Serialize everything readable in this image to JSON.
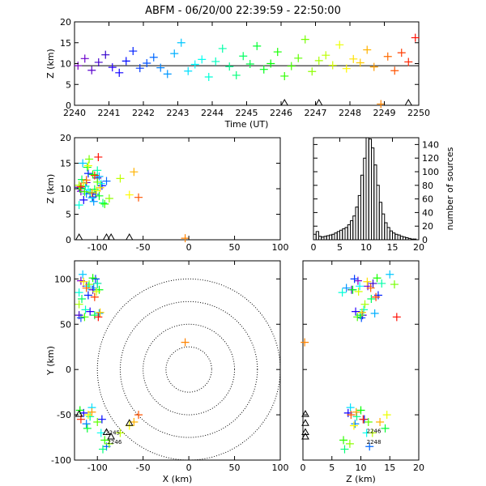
{
  "chart_data": {
    "type": "scatter",
    "title": "ABFM - 06/20/00 22:39:59 - 22:50:00",
    "panels": {
      "time_height": {
        "xlabel": "Time (UT)",
        "ylabel": "Z (km)",
        "xlim": [
          2240,
          2250
        ],
        "ylim": [
          0,
          20
        ],
        "xticks": [
          "2240",
          "2241",
          "2242",
          "2243",
          "2244",
          "2245",
          "2246",
          "2247",
          "2248",
          "2249",
          "2250"
        ],
        "yticks": [
          "0",
          "5",
          "10",
          "15",
          "20"
        ],
        "reference_line_z": 9.5
      },
      "x_height": {
        "xlabel": "",
        "ylabel": "Z (km)",
        "xlim": [
          -125,
          100
        ],
        "ylim": [
          0,
          20
        ],
        "xticks": [
          "-100",
          "-50",
          "0",
          "50",
          "100"
        ],
        "yticks": [
          "0",
          "5",
          "10",
          "15",
          "20"
        ]
      },
      "histogram": {
        "xlabel": "",
        "ylabel": "number of sources",
        "xlim": [
          0,
          20
        ],
        "ylim": [
          0,
          150
        ],
        "xticks": [
          "0",
          "5",
          "10",
          "15",
          "20"
        ],
        "yticks": [
          "0",
          "20",
          "40",
          "60",
          "80",
          "100",
          "120",
          "140"
        ],
        "bin_z": [
          0,
          0.5,
          1,
          1.5,
          2,
          2.5,
          3,
          3.5,
          4,
          4.5,
          5,
          5.5,
          6,
          6.5,
          7,
          7.5,
          8,
          8.5,
          9,
          9.5,
          10,
          10.5,
          11,
          11.5,
          12,
          12.5,
          13,
          13.5,
          14,
          14.5,
          15,
          15.5,
          16,
          16.5,
          17,
          17.5,
          18,
          18.5,
          19,
          19.5
        ],
        "counts": [
          8,
          12,
          5,
          4,
          5,
          6,
          7,
          8,
          10,
          12,
          14,
          16,
          18,
          22,
          28,
          35,
          48,
          65,
          95,
          120,
          150,
          148,
          135,
          110,
          80,
          55,
          38,
          25,
          18,
          13,
          10,
          8,
          7,
          5,
          4,
          3,
          2,
          1,
          1,
          0
        ]
      },
      "plan_view": {
        "xlabel": "X (km)",
        "ylabel": "Y (km)",
        "xlim": [
          -125,
          100
        ],
        "ylim": [
          -100,
          120
        ],
        "xticks": [
          "-100",
          "-50",
          "0",
          "50",
          "100"
        ],
        "yticks": [
          "-100",
          "-50",
          "0",
          "50",
          "100"
        ],
        "range_rings_km": [
          25,
          50,
          75,
          100
        ],
        "annotations": [
          "2245",
          "2246"
        ]
      },
      "z_y": {
        "xlabel": "Z (km)",
        "ylabel": "",
        "xlim": [
          0,
          20
        ],
        "ylim": [
          -100,
          120
        ],
        "xticks": [
          "0",
          "5",
          "10",
          "15",
          "20"
        ],
        "yticks": [
          "-100",
          "-50",
          "0",
          "50",
          "100"
        ],
        "annotations": [
          "2246",
          "2248"
        ]
      }
    },
    "station_markers": [
      {
        "x": -90,
        "y": -70
      },
      {
        "x": -85,
        "y": -75
      },
      {
        "x": -65,
        "y": -60
      },
      {
        "x": -120,
        "y": -50
      }
    ],
    "sources": [
      {
        "t": 2240.1,
        "x": -118,
        "y": 98,
        "z": 9.5
      },
      {
        "t": 2240.3,
        "x": -112,
        "y": 92,
        "z": 11.2
      },
      {
        "t": 2240.5,
        "x": -105,
        "y": 88,
        "z": 8.4
      },
      {
        "t": 2240.7,
        "x": -120,
        "y": 60,
        "z": 10.3
      },
      {
        "t": 2240.9,
        "x": -100,
        "y": 95,
        "z": 12.1
      },
      {
        "t": 2241.1,
        "x": -108,
        "y": 64,
        "z": 9.1
      },
      {
        "t": 2241.3,
        "x": -115,
        "y": -48,
        "z": 7.8
      },
      {
        "t": 2241.5,
        "x": -95,
        "y": -55,
        "z": 10.6
      },
      {
        "t": 2241.7,
        "x": -110,
        "y": 82,
        "z": 13.0
      },
      {
        "t": 2241.9,
        "x": -102,
        "y": 100,
        "z": 8.9
      },
      {
        "t": 2242.1,
        "x": -118,
        "y": 57,
        "z": 10.1
      },
      {
        "t": 2242.3,
        "x": -90,
        "y": -85,
        "z": 11.5
      },
      {
        "t": 2242.5,
        "x": -112,
        "y": -60,
        "z": 9.0
      },
      {
        "t": 2242.7,
        "x": -104,
        "y": 90,
        "z": 7.5
      },
      {
        "t": 2242.9,
        "x": -98,
        "y": 62,
        "z": 12.4
      },
      {
        "t": 2243.1,
        "x": -116,
        "y": 105,
        "z": 15.0
      },
      {
        "t": 2243.3,
        "x": -106,
        "y": -42,
        "z": 8.2
      },
      {
        "t": 2243.5,
        "x": -110,
        "y": 92,
        "z": 9.8
      },
      {
        "t": 2243.7,
        "x": -96,
        "y": -70,
        "z": 11.0
      },
      {
        "t": 2243.9,
        "x": -120,
        "y": 85,
        "z": 6.8
      },
      {
        "t": 2244.1,
        "x": -113,
        "y": 66,
        "z": 10.5
      },
      {
        "t": 2244.3,
        "x": -100,
        "y": 95,
        "z": 13.6
      },
      {
        "t": 2244.5,
        "x": -108,
        "y": -52,
        "z": 9.3
      },
      {
        "t": 2244.7,
        "x": -94,
        "y": -88,
        "z": 7.2
      },
      {
        "t": 2244.9,
        "x": -117,
        "y": 78,
        "z": 11.8
      },
      {
        "t": 2245.1,
        "x": -103,
        "y": 60,
        "z": 9.9
      },
      {
        "t": 2245.3,
        "x": -111,
        "y": -65,
        "z": 14.2
      },
      {
        "t": 2245.5,
        "x": -98,
        "y": 88,
        "z": 8.6
      },
      {
        "t": 2245.7,
        "x": -119,
        "y": -45,
        "z": 10.0
      },
      {
        "t": 2245.9,
        "x": -105,
        "y": 101,
        "z": 12.8
      },
      {
        "t": 2246.1,
        "x": -92,
        "y": -78,
        "z": 7.0
      },
      {
        "t": 2246.3,
        "x": -114,
        "y": 58,
        "z": 9.4
      },
      {
        "t": 2246.5,
        "x": -100,
        "y": -58,
        "z": 11.3
      },
      {
        "t": 2246.7,
        "x": -109,
        "y": 94,
        "z": 15.8
      },
      {
        "t": 2246.9,
        "x": -87,
        "y": -82,
        "z": 8.1
      },
      {
        "t": 2247.1,
        "x": -120,
        "y": 72,
        "z": 10.7
      },
      {
        "t": 2247.3,
        "x": -75,
        "y": -70,
        "z": 12.0
      },
      {
        "t": 2247.5,
        "x": -101,
        "y": 86,
        "z": 9.6
      },
      {
        "t": 2247.7,
        "x": -110,
        "y": -50,
        "z": 14.5
      },
      {
        "t": 2247.9,
        "x": -65,
        "y": -62,
        "z": 8.8
      },
      {
        "t": 2248.1,
        "x": -115,
        "y": 97,
        "z": 11.1
      },
      {
        "t": 2248.3,
        "x": -97,
        "y": 63,
        "z": 10.2
      },
      {
        "t": 2248.5,
        "x": -60,
        "y": -58,
        "z": 13.3
      },
      {
        "t": 2248.7,
        "x": -106,
        "y": -47,
        "z": 9.2
      },
      {
        "t": 2248.9,
        "x": -4,
        "y": 30,
        "z": 0.3
      },
      {
        "t": 2249.1,
        "x": -112,
        "y": 90,
        "z": 11.7
      },
      {
        "t": 2249.3,
        "x": -55,
        "y": -50,
        "z": 8.3
      },
      {
        "t": 2249.5,
        "x": -103,
        "y": 80,
        "z": 12.6
      },
      {
        "t": 2249.7,
        "x": -118,
        "y": -55,
        "z": 10.4
      },
      {
        "t": 2249.9,
        "x": -99,
        "y": 58,
        "z": 16.2
      }
    ]
  }
}
